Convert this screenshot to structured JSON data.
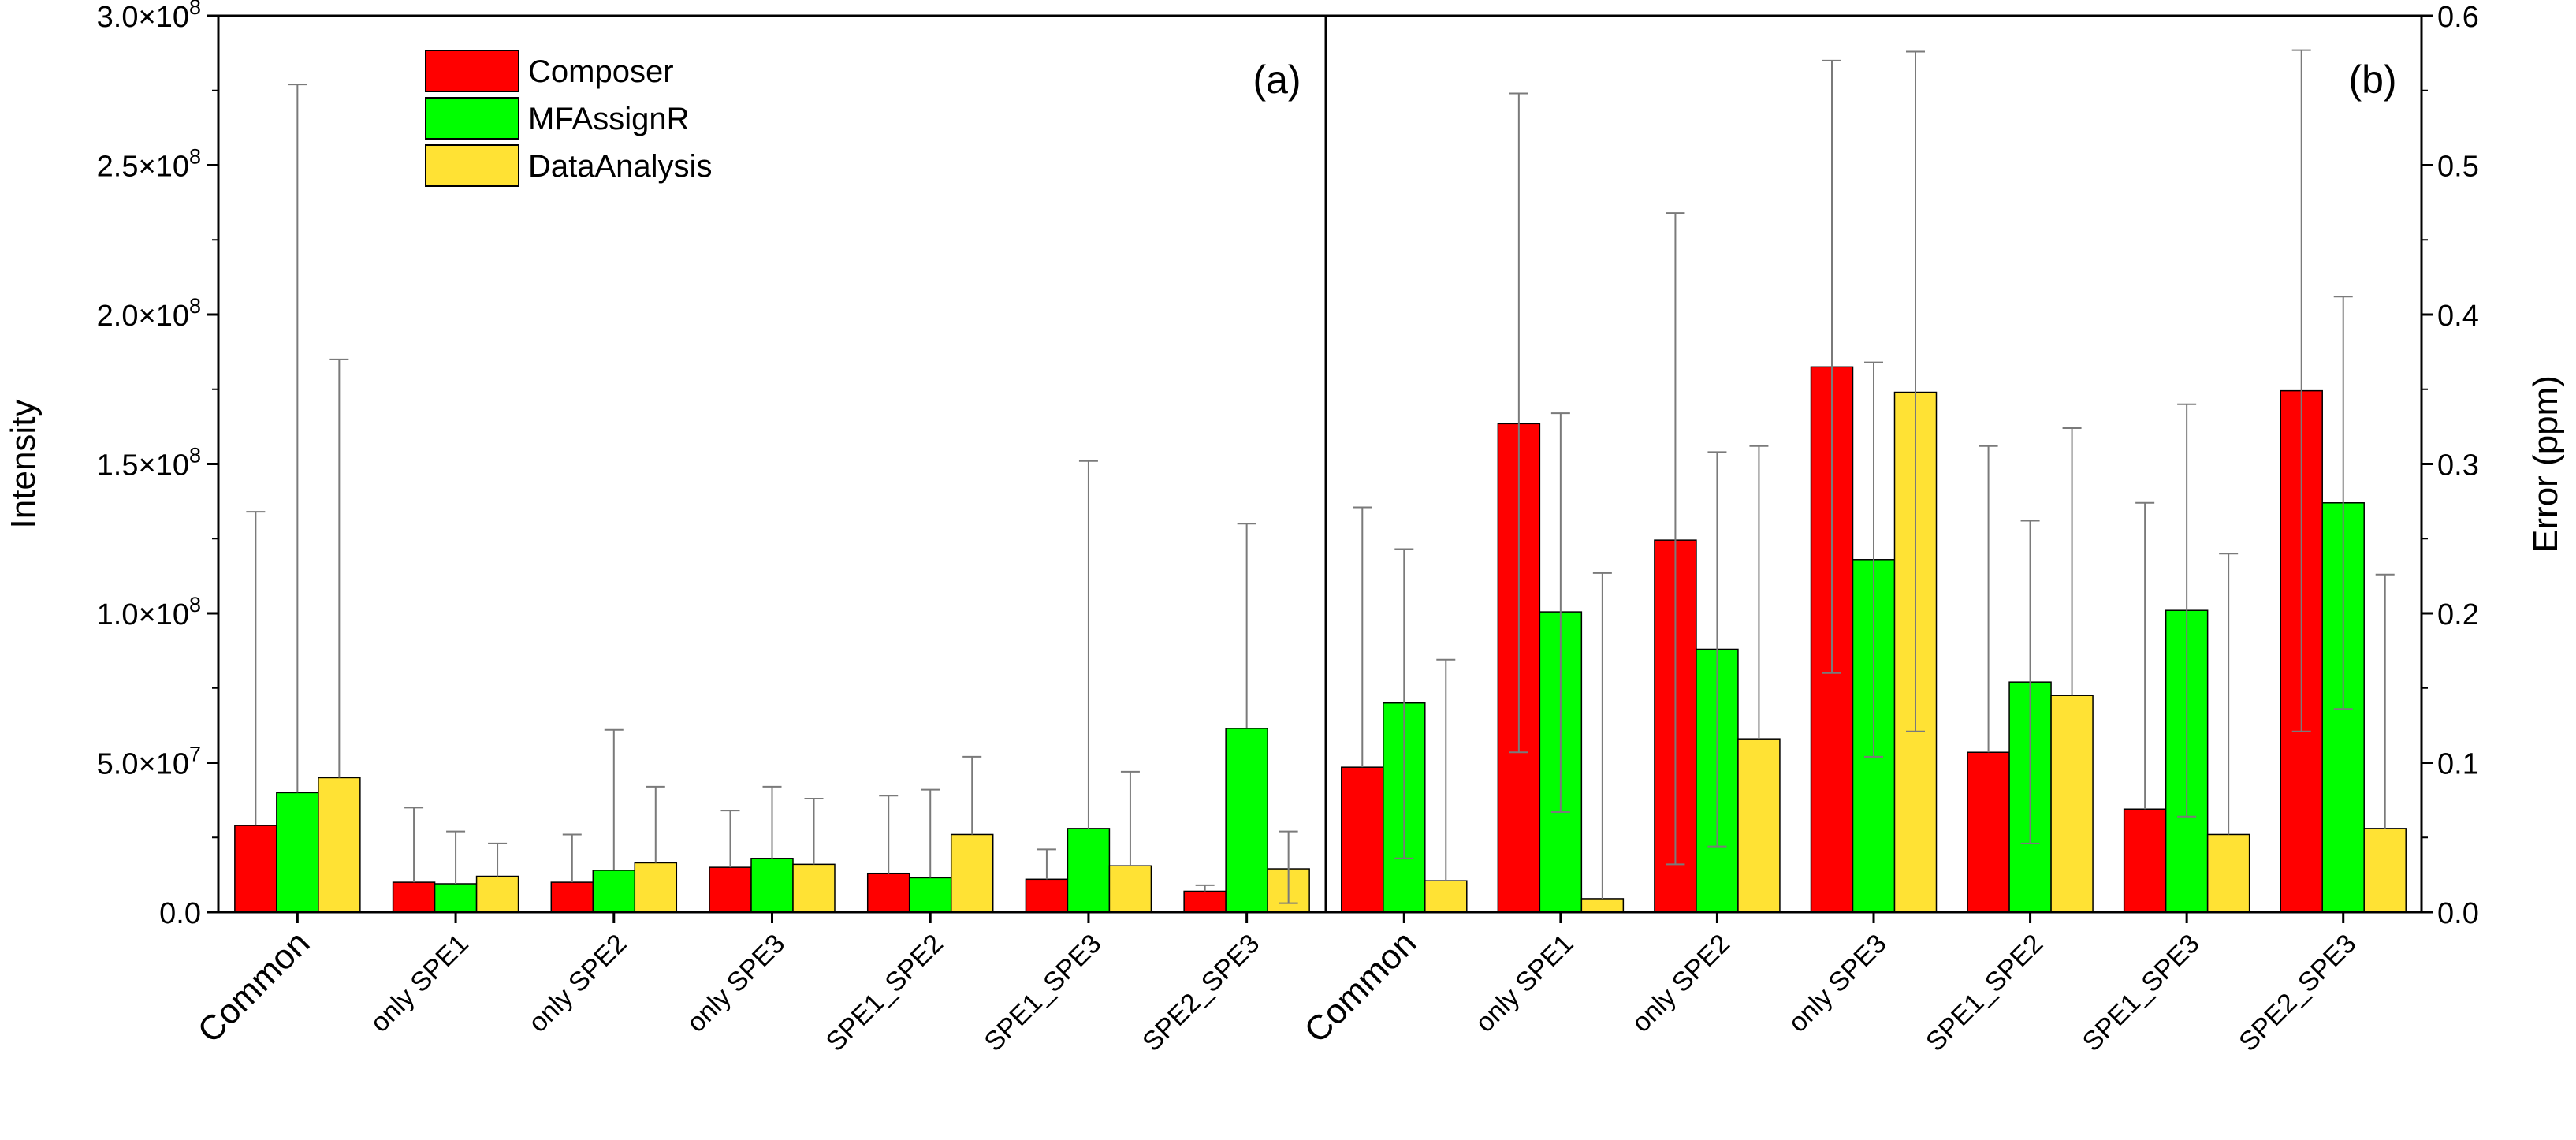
{
  "chart_data": [
    {
      "panel_label": "(a)",
      "type": "bar",
      "ylabel": "Intensity",
      "ylim": [
        0,
        300000000
      ],
      "yticks": [
        {
          "value": 0,
          "label": "0.0"
        },
        {
          "value": 50000000,
          "label": "5.0×10^7",
          "mant": "5.0×10",
          "exp": "7"
        },
        {
          "value": 100000000,
          "label": "1.0×10^8",
          "mant": "1.0×10",
          "exp": "8"
        },
        {
          "value": 150000000,
          "label": "1.5×10^8",
          "mant": "1.5×10",
          "exp": "8"
        },
        {
          "value": 200000000,
          "label": "2.0×10^8",
          "mant": "2.0×10",
          "exp": "8"
        },
        {
          "value": 250000000,
          "label": "2.5×10^8",
          "mant": "2.5×10",
          "exp": "8"
        },
        {
          "value": 300000000,
          "label": "3.0×10^8",
          "mant": "3.0×10",
          "exp": "8"
        }
      ],
      "categories": [
        "Common",
        "only SPE1",
        "only SPE2",
        "only SPE3",
        "SPE1_SPE2",
        "SPE1_SPE3",
        "SPE2_SPE3"
      ],
      "series": [
        {
          "name": "Composer",
          "color": "#ff0000",
          "values": [
            29000000,
            10000000,
            10000000,
            15000000,
            13000000,
            11000000,
            7000000
          ],
          "error_upper": [
            134000000,
            35000000,
            26000000,
            34000000,
            39000000,
            21000000,
            9000000
          ]
        },
        {
          "name": "MFAssignR",
          "color": "#00ff00",
          "values": [
            40000000,
            9500000,
            14000000,
            18000000,
            11500000,
            28000000,
            61500000
          ],
          "error_upper": [
            277000000,
            27000000,
            61000000,
            42000000,
            41000000,
            151000000,
            130000000
          ]
        },
        {
          "name": "DataAnalysis",
          "color": "#ffe234",
          "values": [
            45000000,
            12000000,
            16500000,
            16000000,
            26000000,
            15500000,
            14500000
          ],
          "error_upper": [
            185000000,
            23000000,
            42000000,
            38000000,
            52000000,
            47000000,
            27000000
          ],
          "error_lower": [
            null,
            null,
            null,
            null,
            null,
            null,
            3000000
          ]
        }
      ]
    },
    {
      "panel_label": "(b)",
      "type": "bar",
      "ylabel": "Error (ppm)",
      "ylim": [
        0,
        0.6
      ],
      "yticks": [
        {
          "value": 0,
          "label": "0.0"
        },
        {
          "value": 0.1,
          "label": "0.1"
        },
        {
          "value": 0.2,
          "label": "0.2"
        },
        {
          "value": 0.3,
          "label": "0.3"
        },
        {
          "value": 0.4,
          "label": "0.4"
        },
        {
          "value": 0.5,
          "label": "0.5"
        },
        {
          "value": 0.6,
          "label": "0.6"
        }
      ],
      "categories": [
        "Common",
        "only SPE1",
        "only SPE2",
        "only SPE3",
        "SPE1_SPE2",
        "SPE1_SPE3",
        "SPE2_SPE3"
      ],
      "series": [
        {
          "name": "Composer",
          "color": "#ff0000",
          "values": [
            0.097,
            0.327,
            0.249,
            0.365,
            0.107,
            0.069,
            0.349
          ],
          "error_upper": [
            0.271,
            0.548,
            0.468,
            0.57,
            0.312,
            0.274,
            0.577
          ],
          "error_lower": [
            null,
            0.107,
            0.032,
            0.16,
            null,
            null,
            0.121
          ]
        },
        {
          "name": "MFAssignR",
          "color": "#00ff00",
          "values": [
            0.14,
            0.201,
            0.176,
            0.236,
            0.154,
            0.202,
            0.274
          ],
          "error_upper": [
            0.243,
            0.334,
            0.308,
            0.368,
            0.262,
            0.34,
            0.412
          ],
          "error_lower": [
            0.036,
            0.067,
            0.044,
            0.104,
            0.046,
            0.064,
            0.136
          ]
        },
        {
          "name": "DataAnalysis",
          "color": "#ffe234",
          "values": [
            0.021,
            0.009,
            0.116,
            0.348,
            0.145,
            0.052,
            0.056
          ],
          "error_upper": [
            0.169,
            0.227,
            0.312,
            0.576,
            0.324,
            0.24,
            0.226
          ],
          "error_lower": [
            null,
            null,
            null,
            0.121,
            null,
            null,
            null
          ]
        }
      ]
    }
  ]
}
